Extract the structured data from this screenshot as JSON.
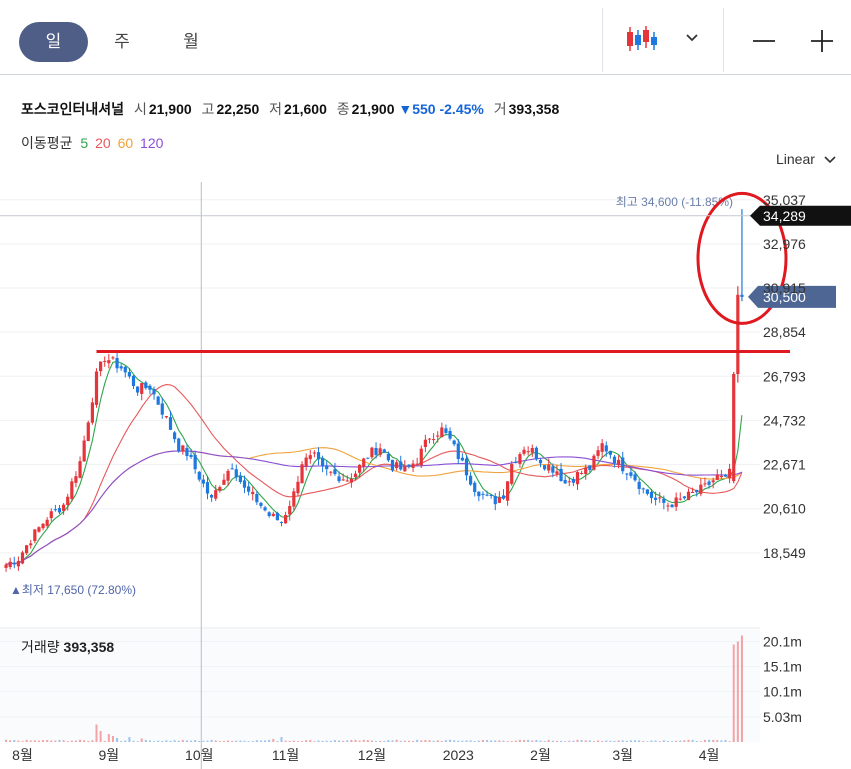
{
  "tabs": {
    "day": "일",
    "week": "주",
    "month": "월"
  },
  "toolbar": {
    "chart_type_icon": "candlestick-icon",
    "dropdown_icon": "chevron-down-icon",
    "zoom_out_icon": "minus-icon",
    "zoom_in_icon": "plus-icon"
  },
  "info": {
    "name": "포스코인터내셔널",
    "open_label": "시",
    "open": "21,900",
    "high_label": "고",
    "high": "22,250",
    "low_label": "저",
    "low": "21,600",
    "close_label": "종",
    "close": "21,900",
    "change": "▼550 -2.45%",
    "volume_label": "거",
    "volume": "393,358"
  },
  "ma": {
    "label": "이동평균",
    "p5": "5",
    "p20": "20",
    "p60": "60",
    "p120": "120"
  },
  "scale_mode": "Linear",
  "colors": {
    "up": "#e5353b",
    "down": "#1d78e0",
    "ma5": "#2ea64a",
    "ma20": "#e8585a",
    "ma60": "#f0a33c",
    "ma120": "#8b4fd6",
    "accent": "#4e5e86"
  },
  "chart_data": {
    "type": "candlestick",
    "ylim": [
      17000,
      35400
    ],
    "y_ticks": [
      "35,037",
      "32,976",
      "30,915",
      "28,854",
      "26,793",
      "24,732",
      "22,671",
      "20,610",
      "18,549"
    ],
    "y_tick_values": [
      35037,
      32976,
      30915,
      28854,
      26793,
      24732,
      22671,
      20610,
      18549
    ],
    "x_labels": [
      "8월",
      "9월",
      "10월",
      "11월",
      "12월",
      "2023",
      "2월",
      "3월",
      "4월"
    ],
    "x_label_day_index": [
      4,
      25,
      47,
      68,
      89,
      110,
      130,
      150,
      171
    ],
    "high_marker": "최고 34,600 (-11.85%)",
    "low_marker": "▲최저 17,650 (72.80%)",
    "current_price_tag": "30,500",
    "crosshair_price_tag": "34,289",
    "current_price": 30500,
    "crosshair_price": 34289,
    "resistance_price": 27950,
    "close_anchors": [
      [
        0,
        18000
      ],
      [
        3,
        18300
      ],
      [
        6,
        19200
      ],
      [
        10,
        20200
      ],
      [
        14,
        20800
      ],
      [
        18,
        22800
      ],
      [
        22,
        26800
      ],
      [
        24,
        27700
      ],
      [
        28,
        27200
      ],
      [
        32,
        26200
      ],
      [
        35,
        26300
      ],
      [
        39,
        24800
      ],
      [
        42,
        23500
      ],
      [
        44,
        23200
      ],
      [
        47,
        22100
      ],
      [
        50,
        21000
      ],
      [
        52,
        21800
      ],
      [
        55,
        22700
      ],
      [
        58,
        21500
      ],
      [
        61,
        21000
      ],
      [
        64,
        20300
      ],
      [
        67,
        20000
      ],
      [
        70,
        21300
      ],
      [
        72,
        22800
      ],
      [
        75,
        23000
      ],
      [
        77,
        22400
      ],
      [
        80,
        22200
      ],
      [
        83,
        22000
      ],
      [
        85,
        22300
      ],
      [
        88,
        23100
      ],
      [
        91,
        23500
      ],
      [
        94,
        22600
      ],
      [
        97,
        22400
      ],
      [
        100,
        22900
      ],
      [
        103,
        24000
      ],
      [
        106,
        24300
      ],
      [
        108,
        23800
      ],
      [
        111,
        22700
      ],
      [
        114,
        21600
      ],
      [
        117,
        21100
      ],
      [
        119,
        21000
      ],
      [
        121,
        21300
      ],
      [
        123,
        22700
      ],
      [
        126,
        23500
      ],
      [
        128,
        23300
      ],
      [
        131,
        22700
      ],
      [
        134,
        22400
      ],
      [
        136,
        21800
      ],
      [
        139,
        22200
      ],
      [
        142,
        22500
      ],
      [
        145,
        23600
      ],
      [
        147,
        23200
      ],
      [
        149,
        22700
      ],
      [
        152,
        22300
      ],
      [
        155,
        21500
      ],
      [
        158,
        21000
      ],
      [
        161,
        20800
      ],
      [
        164,
        21000
      ],
      [
        167,
        21300
      ],
      [
        170,
        21600
      ],
      [
        173,
        22100
      ],
      [
        175,
        21900
      ],
      [
        177,
        23000
      ],
      [
        178,
        26800
      ],
      [
        179,
        30500
      ]
    ],
    "volume": {
      "label": "거래량",
      "value": "393,358",
      "y_ticks": [
        "20.1m",
        "15.1m",
        "10.1m",
        "5.03m"
      ],
      "y_tick_values": [
        20.1,
        15.1,
        10.1,
        5.03
      ],
      "spikes": [
        [
          22,
          3.5
        ],
        [
          23,
          2.2
        ],
        [
          25,
          1.6
        ],
        [
          26,
          1.2
        ],
        [
          27,
          0.8
        ],
        [
          30,
          1.0
        ],
        [
          33,
          0.7
        ],
        [
          65,
          0.6
        ],
        [
          67,
          1.0
        ],
        [
          177,
          19.5
        ],
        [
          178,
          20.1
        ],
        [
          179,
          21.3
        ]
      ]
    }
  }
}
